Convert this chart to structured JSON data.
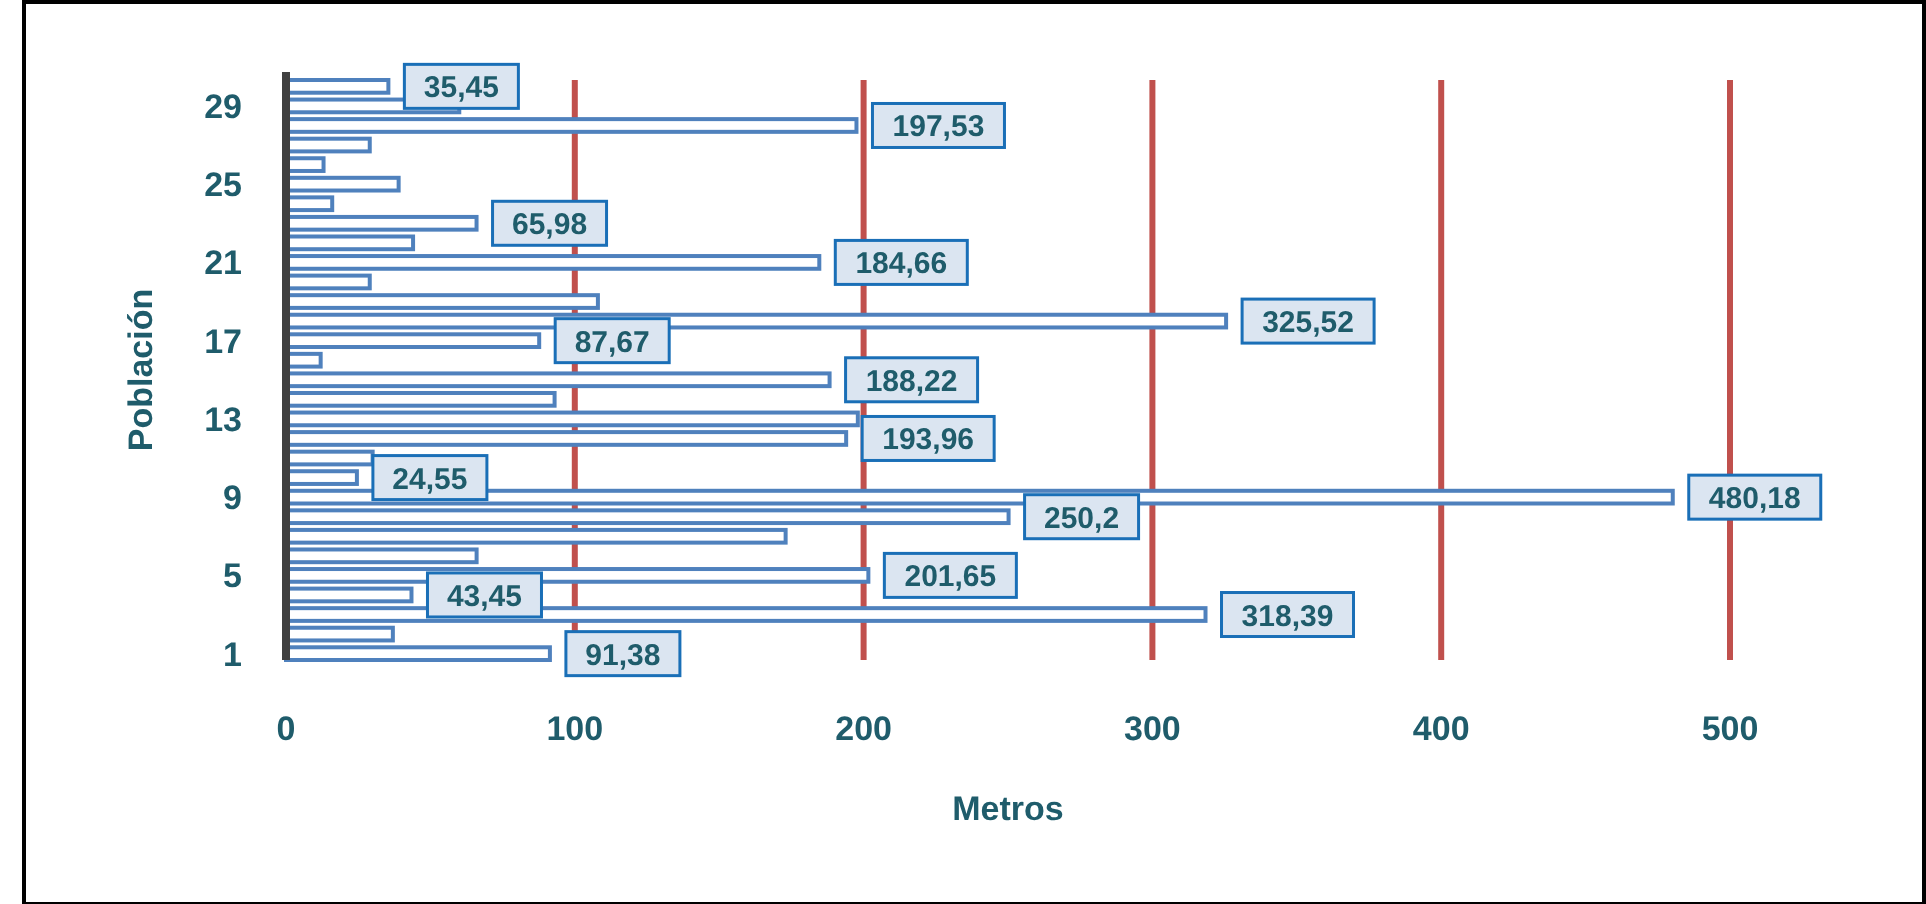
{
  "chart_data": {
    "type": "bar",
    "orientation": "horizontal",
    "xlabel": "Metros",
    "ylabel": "Población",
    "categories": [
      null,
      "29",
      null,
      null,
      null,
      "25",
      null,
      null,
      null,
      "21",
      null,
      null,
      null,
      "17",
      null,
      null,
      null,
      "13",
      null,
      null,
      null,
      "9",
      null,
      null,
      null,
      "5",
      null,
      null,
      null,
      "1"
    ],
    "values": [
      35.45,
      60,
      197.53,
      29,
      13,
      39,
      16,
      65.98,
      44,
      184.66,
      29,
      108,
      325.52,
      87.67,
      12,
      188.22,
      93,
      198,
      193.96,
      30,
      24.55,
      480.18,
      250.2,
      173,
      66,
      201.65,
      43.45,
      318.39,
      37,
      91.38
    ],
    "value_labels": [
      "35,45",
      null,
      "197,53",
      null,
      null,
      null,
      null,
      "65,98",
      null,
      "184,66",
      null,
      null,
      "325,52",
      "87,67",
      null,
      "188,22",
      null,
      null,
      "193,96",
      null,
      "24,55",
      "480,18",
      "250,2",
      null,
      null,
      "201,65",
      "43,45",
      "318,39",
      null,
      "91,38"
    ],
    "color": "#4f81bd",
    "xlim": [
      0,
      500
    ],
    "xticks": [
      0,
      100,
      200,
      300,
      400,
      500
    ],
    "grid": "x"
  }
}
